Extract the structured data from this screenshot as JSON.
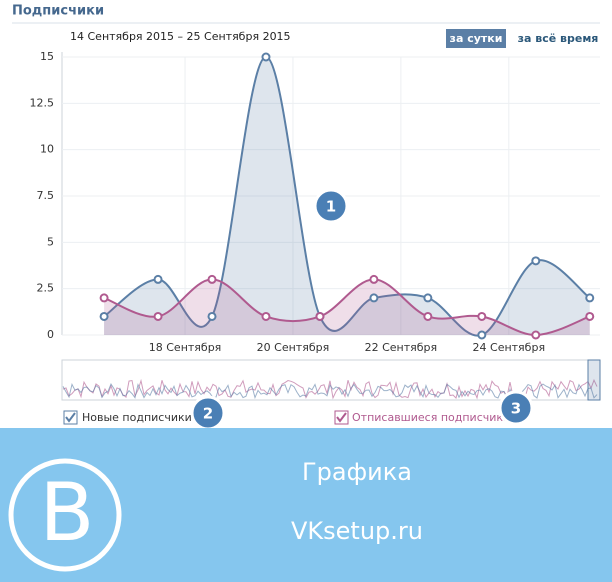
{
  "header": {
    "title": "Подписчики",
    "period": "14 Сентября 2015 – 25 Сентября 2015",
    "buttons": [
      "за сутки",
      "за всё время"
    ]
  },
  "chart_data": {
    "type": "line",
    "x": [
      0,
      1,
      2,
      3,
      4,
      5,
      6,
      7,
      8,
      9
    ],
    "xlim": [
      -0.78,
      9.19
    ],
    "xticks": [
      {
        "value": 1.5,
        "label": "18 Сентября"
      },
      {
        "value": 3.5,
        "label": "20 Сентября"
      },
      {
        "value": 5.5,
        "label": "22 Сентября"
      },
      {
        "value": 7.5,
        "label": "24 Сентября"
      }
    ],
    "ylim": [
      0,
      15
    ],
    "yticks": [
      0,
      2.5,
      5,
      7.5,
      10,
      12.5,
      15
    ],
    "grid": true,
    "series": [
      {
        "name": "Новые подписчики",
        "color": "#5b7fa6",
        "values": [
          1,
          3,
          1,
          15,
          1,
          2,
          2,
          0,
          4,
          2
        ]
      },
      {
        "name": "Отписавшиеся подписчики",
        "color": "#b05a8f",
        "values": [
          2,
          1,
          3,
          1,
          1,
          3,
          1,
          1,
          0,
          1
        ]
      }
    ]
  },
  "badges": [
    "1",
    "2",
    "3"
  ],
  "banner": {
    "logo": "B",
    "title": "Графика",
    "site": "VKsetup.ru"
  }
}
